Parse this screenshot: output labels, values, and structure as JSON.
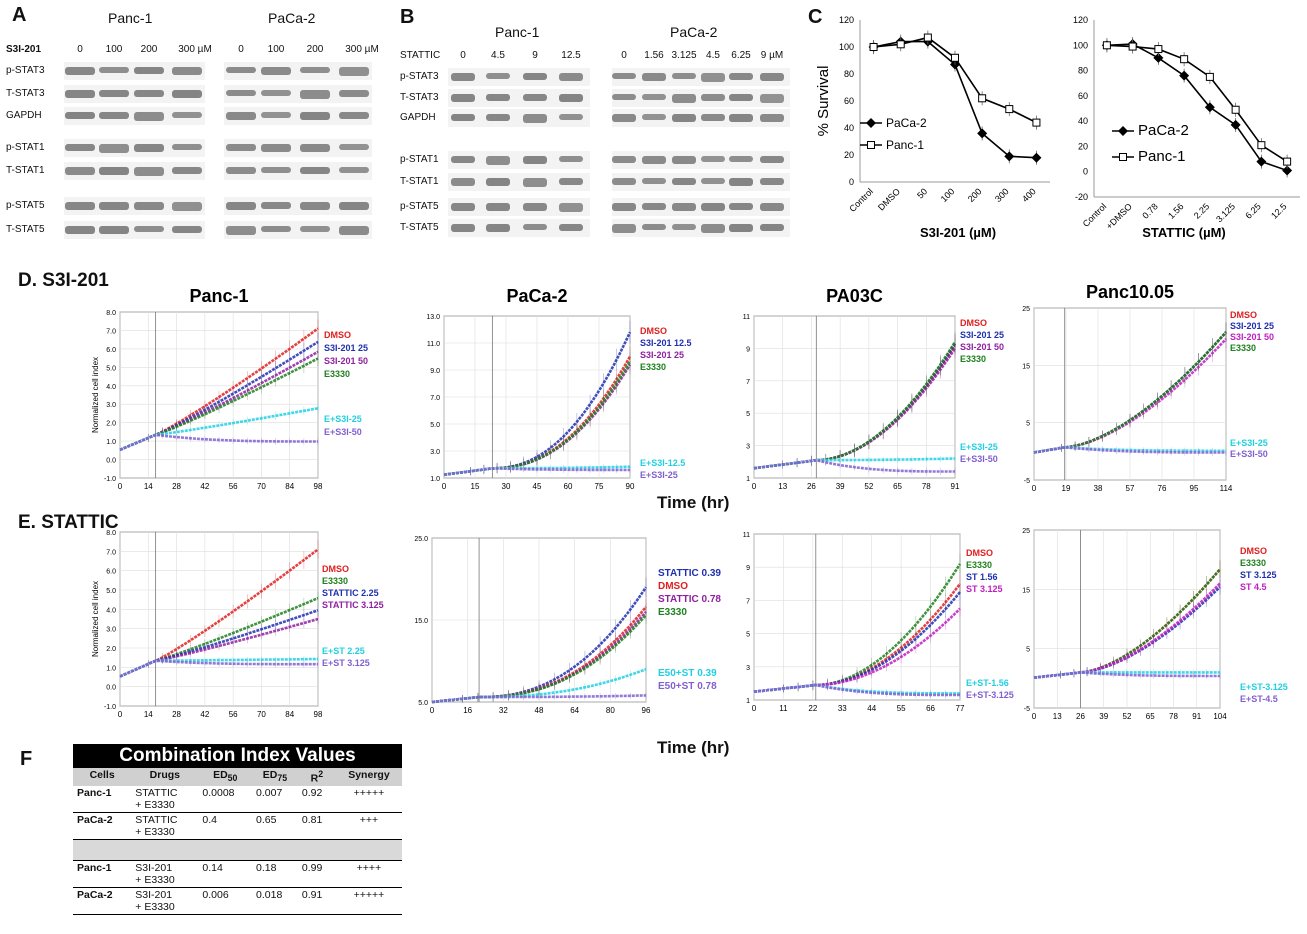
{
  "panelA": {
    "letter": "A",
    "groups": [
      "Panc-1",
      "PaCa-2"
    ],
    "drug_label": "S3I-201",
    "lanes": [
      "0",
      "100",
      "200",
      "300 µM",
      "0",
      "100",
      "200",
      "300 µM"
    ],
    "rows": [
      "p-STAT3",
      "T-STAT3",
      "GAPDH",
      "p-STAT1",
      "T-STAT1",
      "p-STAT5",
      "T-STAT5"
    ]
  },
  "panelB": {
    "letter": "B",
    "groups": [
      "Panc-1",
      "PaCa-2"
    ],
    "drug_label": "STATTIC",
    "lanes": [
      "0",
      "4.5",
      "9",
      "12.5",
      "0",
      "1.56",
      "3.125",
      "4.5",
      "6.25",
      "9 µM"
    ],
    "rows": [
      "p-STAT3",
      "T-STAT3",
      "GAPDH",
      "p-STAT1",
      "T-STAT1",
      "p-STAT5",
      "T-STAT5"
    ]
  },
  "panelC": {
    "letter": "C"
  },
  "panelD": {
    "letter": "D.",
    "label": "S3I-201"
  },
  "panelE": {
    "letter": "E.",
    "label": "STATTIC"
  },
  "panelF": {
    "letter": "F"
  },
  "time_label": "Time (hr)",
  "chart_data": [
    {
      "type": "line",
      "id": "c1",
      "ylabel": "% Survival",
      "xlabel": "S3I-201 (µM)",
      "categories": [
        "Control",
        "DMSO",
        "50",
        "100",
        "200",
        "300",
        "400"
      ],
      "ylim": [
        0,
        120
      ],
      "yticks": [
        0,
        20,
        40,
        60,
        80,
        100,
        120
      ],
      "series": [
        {
          "name": "PaCa-2",
          "marker": "diamond",
          "values": [
            100,
            104,
            104,
            87,
            36,
            19,
            18
          ]
        },
        {
          "name": "Panc-1",
          "marker": "square",
          "values": [
            100,
            102,
            107,
            92,
            62,
            54,
            44
          ]
        }
      ]
    },
    {
      "type": "line",
      "id": "c2",
      "xlabel": "STATTIC (µM)",
      "categories": [
        "Control",
        "+DMSO",
        "0.78",
        "1.56",
        "2.25",
        "3.125",
        "6.25",
        "12.5"
      ],
      "ylim": [
        -20,
        120
      ],
      "yticks": [
        -20,
        0,
        20,
        40,
        60,
        80,
        100,
        120
      ],
      "series": [
        {
          "name": "PaCa-2",
          "marker": "diamond",
          "values": [
            100,
            101,
            90,
            76,
            51,
            37,
            8,
            1
          ]
        },
        {
          "name": "Panc-1",
          "marker": "square",
          "values": [
            100,
            99,
            97,
            89,
            75,
            49,
            21,
            8
          ]
        }
      ]
    },
    {
      "type": "line",
      "id": "d1",
      "title": "Panc-1",
      "ylabel": "Normalized cell index",
      "xticks": [
        "0",
        "14",
        "28",
        "42",
        "56",
        "70",
        "84",
        "98"
      ],
      "yticks": [
        "-1.0",
        "0.0",
        "1.0",
        "2.0",
        "3.0",
        "4.0",
        "5.0",
        "6.0",
        "7.0",
        "8.0"
      ],
      "series": [
        {
          "name": "DMSO",
          "color": "#e02020",
          "final": 0.9
        },
        {
          "name": "S3I-201 25",
          "color": "#2030b0",
          "final": 0.82
        },
        {
          "name": "S3I-201 50",
          "color": "#9020a0",
          "final": 0.76
        },
        {
          "name": "E3330",
          "color": "#208020",
          "final": 0.72
        },
        {
          "name": "E+S3I-25",
          "color": "#20d0e0",
          "final": 0.42
        },
        {
          "name": "E+S3I-50",
          "color": "#8060d0",
          "final": 0.22
        }
      ]
    },
    {
      "type": "line",
      "id": "d2",
      "title": "PaCa-2",
      "xticks": [
        "0",
        "15",
        "30",
        "45",
        "60",
        "75",
        "90"
      ],
      "yticks": [
        "1.0",
        "3.0",
        "5.0",
        "7.0",
        "9.0",
        "11.0",
        "13.0"
      ],
      "series": [
        {
          "name": "DMSO",
          "color": "#e02020",
          "final": 0.75
        },
        {
          "name": "S3I-201 12.5",
          "color": "#2030b0",
          "final": 0.9
        },
        {
          "name": "S3I-201 25",
          "color": "#9020a0",
          "final": 0.7
        },
        {
          "name": "E3330",
          "color": "#208020",
          "final": 0.72
        },
        {
          "name": "E+S3I-12.5",
          "color": "#20d0e0",
          "final": 0.07
        },
        {
          "name": "E+S3I-25",
          "color": "#8060d0",
          "final": 0.05
        }
      ]
    },
    {
      "type": "line",
      "id": "d3",
      "title": "PA03C",
      "xticks": [
        "0",
        "13",
        "26",
        "39",
        "52",
        "65",
        "78",
        "91"
      ],
      "yticks": [
        "1",
        "3",
        "5",
        "7",
        "9",
        "11"
      ],
      "series": [
        {
          "name": "DMSO",
          "color": "#e02020",
          "final": 0.82
        },
        {
          "name": "S3I-201 25",
          "color": "#2030b0",
          "final": 0.83
        },
        {
          "name": "S3I-201 50",
          "color": "#9020a0",
          "final": 0.8
        },
        {
          "name": "E3330",
          "color": "#208020",
          "final": 0.84
        },
        {
          "name": "E+S3I-25",
          "color": "#20d0e0",
          "final": 0.12
        },
        {
          "name": "E+S3I-50",
          "color": "#8060d0",
          "final": 0.04
        }
      ]
    },
    {
      "type": "line",
      "id": "d4",
      "title": "Panc10.05",
      "xticks": [
        "0",
        "19",
        "38",
        "57",
        "76",
        "95",
        "114"
      ],
      "yticks": [
        "-5",
        "5",
        "15",
        "25"
      ],
      "series": [
        {
          "name": "DMSO",
          "color": "#e02020",
          "final": 0.86
        },
        {
          "name": "S3I-201 25",
          "color": "#2030b0",
          "final": 0.86
        },
        {
          "name": "S3I-201 50",
          "color": "#c020c0",
          "final": 0.82
        },
        {
          "name": "E3330",
          "color": "#208020",
          "final": 0.86
        },
        {
          "name": "E+S3I-25",
          "color": "#20d0e0",
          "final": 0.17
        },
        {
          "name": "E+S3I-50",
          "color": "#8060d0",
          "final": 0.16
        }
      ]
    },
    {
      "type": "line",
      "id": "e1",
      "ylabel": "Normalized cell index",
      "xticks": [
        "0",
        "14",
        "28",
        "42",
        "56",
        "70",
        "84",
        "98"
      ],
      "yticks": [
        "-1.0",
        "0.0",
        "1.0",
        "2.0",
        "3.0",
        "4.0",
        "5.0",
        "6.0",
        "7.0",
        "8.0"
      ],
      "series": [
        {
          "name": "DMSO",
          "color": "#e02020",
          "final": 0.9
        },
        {
          "name": "E3330",
          "color": "#208020",
          "final": 0.62
        },
        {
          "name": "STATTIC 2.25",
          "color": "#2030b0",
          "final": 0.55
        },
        {
          "name": "STATTIC 3.125",
          "color": "#9020a0",
          "final": 0.5
        },
        {
          "name": "E+ST 2.25",
          "color": "#20d0e0",
          "final": 0.27
        },
        {
          "name": "E+ST 3.125",
          "color": "#8060d0",
          "final": 0.24
        }
      ]
    },
    {
      "type": "line",
      "id": "e2",
      "xticks": [
        "0",
        "16",
        "32",
        "48",
        "64",
        "80",
        "96"
      ],
      "yticks": [
        "5.0",
        "15.0",
        "25.0"
      ],
      "series": [
        {
          "name": "STATTIC 0.39",
          "color": "#2030b0",
          "final": 0.7
        },
        {
          "name": "DMSO",
          "color": "#e02020",
          "final": 0.58
        },
        {
          "name": "STATTIC 0.78",
          "color": "#9020a0",
          "final": 0.55
        },
        {
          "name": "E3330",
          "color": "#208020",
          "final": 0.53
        },
        {
          "name": "E50+ST 0.39",
          "color": "#20d0e0",
          "final": 0.2
        },
        {
          "name": "E50+ST 0.78",
          "color": "#8060d0",
          "final": 0.04
        }
      ]
    },
    {
      "type": "line",
      "id": "e3",
      "xticks": [
        "0",
        "11",
        "22",
        "33",
        "44",
        "55",
        "66",
        "77"
      ],
      "yticks": [
        "1",
        "3",
        "5",
        "7",
        "9",
        "11"
      ],
      "series": [
        {
          "name": "DMSO",
          "color": "#e02020",
          "final": 0.7
        },
        {
          "name": "E3330",
          "color": "#208020",
          "final": 0.82
        },
        {
          "name": "ST 1.56",
          "color": "#2030b0",
          "final": 0.65
        },
        {
          "name": "ST 3.125",
          "color": "#c020c0",
          "final": 0.55
        },
        {
          "name": "E+ST-1.56",
          "color": "#20d0e0",
          "final": 0.04
        },
        {
          "name": "E+ST-3.125",
          "color": "#8060d0",
          "final": 0.03
        }
      ]
    },
    {
      "type": "line",
      "id": "e4",
      "xticks": [
        "0",
        "13",
        "26",
        "39",
        "52",
        "65",
        "78",
        "91",
        "104"
      ],
      "yticks": [
        "-5",
        "5",
        "15",
        "25"
      ],
      "series": [
        {
          "name": "DMSO",
          "color": "#e02020",
          "final": 0.78
        },
        {
          "name": "E3330",
          "color": "#208020",
          "final": 0.78
        },
        {
          "name": "ST 3.125",
          "color": "#2030b0",
          "final": 0.68
        },
        {
          "name": "ST 4.5",
          "color": "#c020c0",
          "final": 0.7
        },
        {
          "name": "E+ST-3.125",
          "color": "#20d0e0",
          "final": 0.2
        },
        {
          "name": "E+ST-4.5",
          "color": "#8060d0",
          "final": 0.18
        }
      ]
    },
    {
      "type": "table",
      "id": "f",
      "title": "Combination Index Values",
      "columns": [
        "Cells",
        "Drugs",
        "ED50",
        "ED75",
        "R2",
        "Synergy"
      ],
      "rows": [
        {
          "cells": "Panc-1",
          "drugs": "STATTIC",
          "drugs2": "+ E3330",
          "ed50": "0.0008",
          "ed75": "0.007",
          "r2": "0.92",
          "synergy": "+++++"
        },
        {
          "cells": "PaCa-2",
          "drugs": "STATTIC",
          "drugs2": "+ E3330",
          "ed50": "0.4",
          "ed75": "0.65",
          "r2": "0.81",
          "synergy": "+++"
        },
        {
          "cells": "Panc-1",
          "drugs": "S3I-201",
          "drugs2": "+ E3330",
          "ed50": "0.14",
          "ed75": "0.18",
          "r2": "0.99",
          "synergy": "++++"
        },
        {
          "cells": "PaCa-2",
          "drugs": "S3I-201",
          "drugs2": "+ E3330",
          "ed50": "0.006",
          "ed75": "0.018",
          "r2": "0.91",
          "synergy": "+++++"
        }
      ]
    }
  ]
}
